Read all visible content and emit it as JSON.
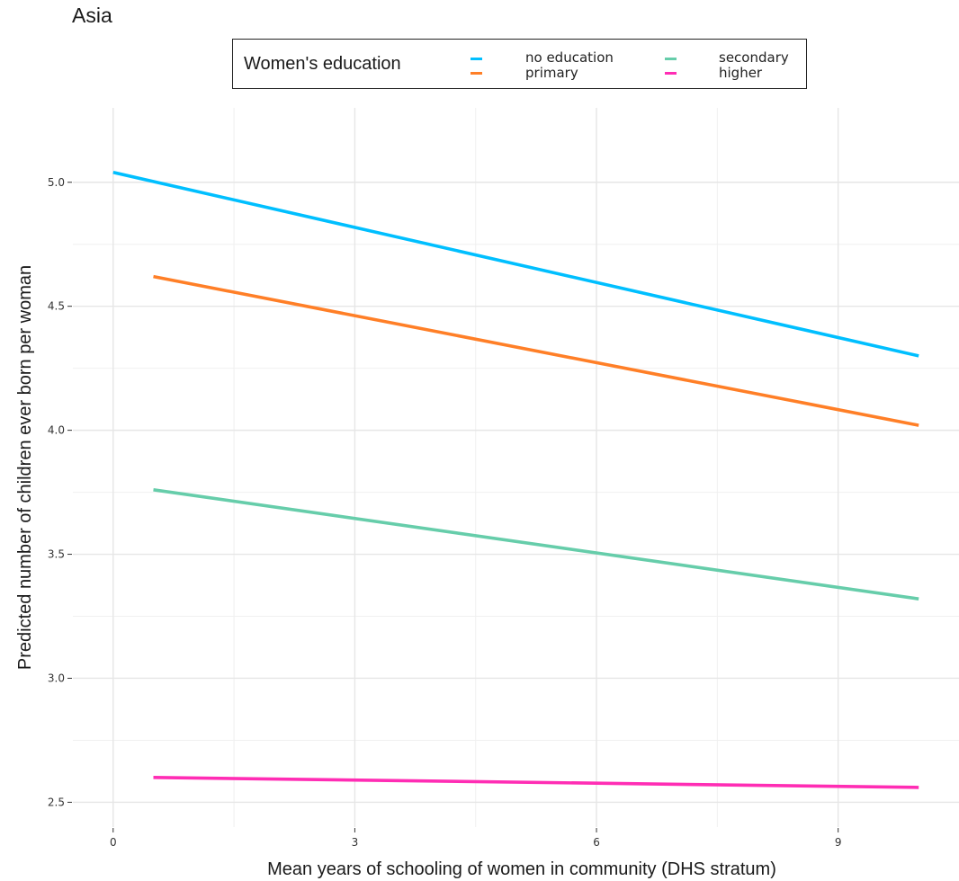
{
  "chart_data": {
    "type": "line",
    "title": "Asia",
    "xlabel": "Mean years of schooling of women in community (DHS stratum)",
    "ylabel": "Predicted number of children ever born per woman",
    "xlim": [
      -0.5,
      10.5
    ],
    "ylim": [
      2.4,
      5.3
    ],
    "xticks": [
      0,
      3,
      6,
      9
    ],
    "xtick_labels": [
      "0",
      "3",
      "6",
      "9"
    ],
    "yticks": [
      2.5,
      3.0,
      3.5,
      4.0,
      4.5,
      5.0
    ],
    "ytick_labels": [
      "2.5",
      "3.0",
      "3.5",
      "4.0",
      "4.5",
      "5.0"
    ],
    "grid": true,
    "legend": {
      "title": "Women's education",
      "placement": "top",
      "entries": [
        "no education",
        "primary",
        "secondary",
        "higher"
      ]
    },
    "series": [
      {
        "name": "no education",
        "color": "#00BFFF",
        "x": [
          0,
          10
        ],
        "y": [
          5.04,
          4.3
        ]
      },
      {
        "name": "primary",
        "color": "#FF7F27",
        "x": [
          0.5,
          10
        ],
        "y": [
          4.62,
          4.02
        ]
      },
      {
        "name": "secondary",
        "color": "#66CDAA",
        "x": [
          0.5,
          10
        ],
        "y": [
          3.76,
          3.32
        ]
      },
      {
        "name": "higher",
        "color": "#FF2DB4",
        "x": [
          0.5,
          10
        ],
        "y": [
          2.6,
          2.56
        ]
      }
    ]
  }
}
